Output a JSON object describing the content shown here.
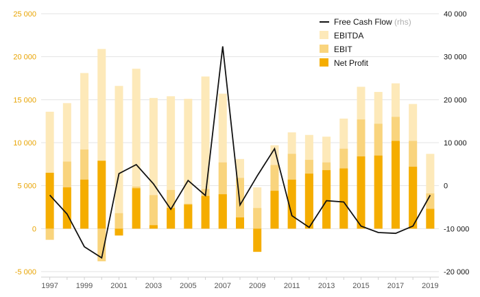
{
  "chart_data": {
    "type": "bar",
    "x": [
      1997,
      1998,
      1999,
      2000,
      2001,
      2002,
      2003,
      2004,
      2005,
      2006,
      2007,
      2008,
      2009,
      2010,
      2011,
      2012,
      2013,
      2014,
      2015,
      2016,
      2017,
      2018,
      2019
    ],
    "x_tick_labels": [
      "1997",
      "1999",
      "2001",
      "2003",
      "2005",
      "2007",
      "2009",
      "2011",
      "2013",
      "2015",
      "2017",
      "2019"
    ],
    "y_left": {
      "ylim": [
        -5000,
        25000
      ],
      "ticks": [
        -5000,
        0,
        5000,
        10000,
        15000,
        20000,
        25000
      ],
      "tick_labels": [
        "-5 000",
        "0",
        "5 000",
        "10 000",
        "15 000",
        "20 000",
        "25 000"
      ]
    },
    "y_right": {
      "ylim": [
        -20000,
        40000
      ],
      "ticks": [
        -20000,
        -10000,
        0,
        10000,
        20000,
        30000,
        40000
      ],
      "tick_labels": [
        "-20 000",
        "-10 000",
        "0",
        "10 000",
        "20 000",
        "30 000",
        "40 000"
      ]
    },
    "grid": "horizontal",
    "legend_position": "top-right",
    "series": [
      {
        "name": "EBITDA",
        "type": "bar",
        "axis": "left",
        "color": "#fde9b9",
        "values": [
          13600,
          14600,
          18100,
          20900,
          16600,
          18600,
          15200,
          15400,
          15100,
          17700,
          15700,
          8100,
          4800,
          9700,
          11200,
          10900,
          10700,
          12800,
          16500,
          15900,
          16900,
          14500,
          8700
        ]
      },
      {
        "name": "EBIT",
        "type": "bar",
        "axis": "left",
        "color": "#f9d47d",
        "values": [
          -1300,
          7800,
          9200,
          -3800,
          1800,
          4900,
          3900,
          4500,
          2900,
          4600,
          7700,
          5900,
          2400,
          7400,
          8700,
          8000,
          7700,
          9300,
          12700,
          12200,
          13000,
          10200,
          4100
        ]
      },
      {
        "name": "Net Profit",
        "type": "bar",
        "axis": "left",
        "color": "#f5ad00",
        "values": [
          6500,
          4800,
          5700,
          7900,
          -800,
          4700,
          400,
          2400,
          2800,
          3800,
          4000,
          1300,
          -2700,
          4400,
          5700,
          6400,
          6800,
          7000,
          8400,
          8500,
          10200,
          7200,
          2300
        ]
      },
      {
        "name": "Free Cash Flow",
        "note": "(rhs)",
        "type": "line",
        "axis": "right",
        "color": "#111111",
        "values": [
          -2200,
          -6600,
          -14200,
          -16800,
          2800,
          4900,
          400,
          -5500,
          1200,
          -2300,
          32400,
          -4500,
          2300,
          8600,
          -7000,
          -9700,
          -3500,
          -3800,
          -9400,
          -10900,
          -11100,
          -9400,
          -2200
        ]
      }
    ]
  }
}
